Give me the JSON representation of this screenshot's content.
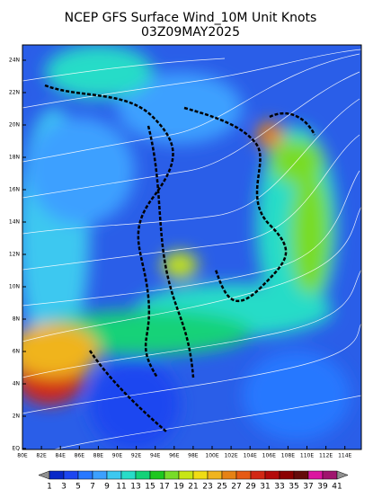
{
  "header": {
    "title": "NCEP GFS Surface Wind_10M Unit Knots",
    "subtitle": "03Z09MAY2025"
  },
  "map": {
    "x_labels": [
      "80E",
      "82E",
      "84E",
      "86E",
      "88E",
      "90E",
      "92E",
      "94E",
      "96E",
      "98E",
      "100E",
      "102E",
      "104E",
      "106E",
      "108E",
      "110E",
      "112E",
      "114E"
    ],
    "y_labels": [
      "EQ",
      "2N",
      "4N",
      "6N",
      "8N",
      "10N",
      "12N",
      "14N",
      "16N",
      "18N",
      "20N",
      "22N",
      "24N"
    ]
  },
  "colorbar": {
    "labels": [
      1,
      3,
      5,
      7,
      9,
      11,
      13,
      15,
      17,
      19,
      21,
      23,
      25,
      27,
      29,
      31,
      33,
      35,
      37,
      39,
      41
    ],
    "colors": [
      "#0a28c8",
      "#1e46f0",
      "#2878ff",
      "#3ca0ff",
      "#3cc8f0",
      "#28dcc8",
      "#14d278",
      "#1ec81e",
      "#78dc28",
      "#c8e614",
      "#f0dc14",
      "#f0b41e",
      "#e68214",
      "#e65a14",
      "#d22814",
      "#b40a0a",
      "#8c0000",
      "#640a0a",
      "#dc14a0",
      "#a0146e"
    ],
    "end_color": "#909090"
  }
}
